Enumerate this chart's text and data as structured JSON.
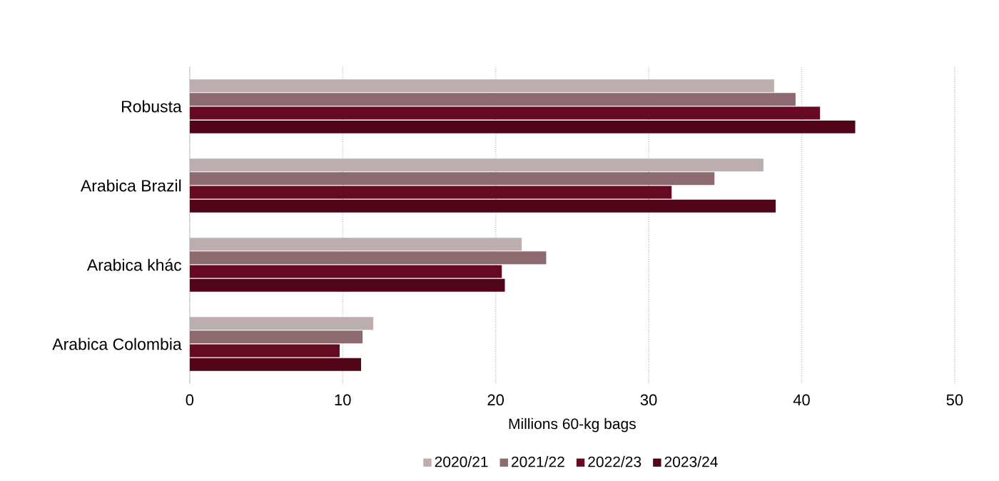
{
  "chart_data": {
    "type": "bar",
    "orientation": "horizontal",
    "categories": [
      "Robusta",
      "Arabica Brazil",
      "Arabica khác",
      "Arabica Colombia"
    ],
    "xlabel": "Millions 60-kg bags",
    "xlim": [
      0,
      50
    ],
    "xticks": [
      0,
      10,
      20,
      30,
      40,
      50
    ],
    "grid": "x",
    "legend": "bottom",
    "series": [
      {
        "name": "2020/21",
        "color": "#bcaeae",
        "values": [
          38.2,
          37.5,
          21.7,
          12.0
        ]
      },
      {
        "name": "2021/22",
        "color": "#8c6a6f",
        "values": [
          39.6,
          34.3,
          23.3,
          11.3
        ]
      },
      {
        "name": "2022/23",
        "color": "#650a22",
        "values": [
          41.2,
          31.5,
          20.4,
          9.8
        ]
      },
      {
        "name": "2023/24",
        "color": "#520418",
        "values": [
          43.5,
          38.3,
          20.6,
          11.2
        ]
      }
    ]
  }
}
